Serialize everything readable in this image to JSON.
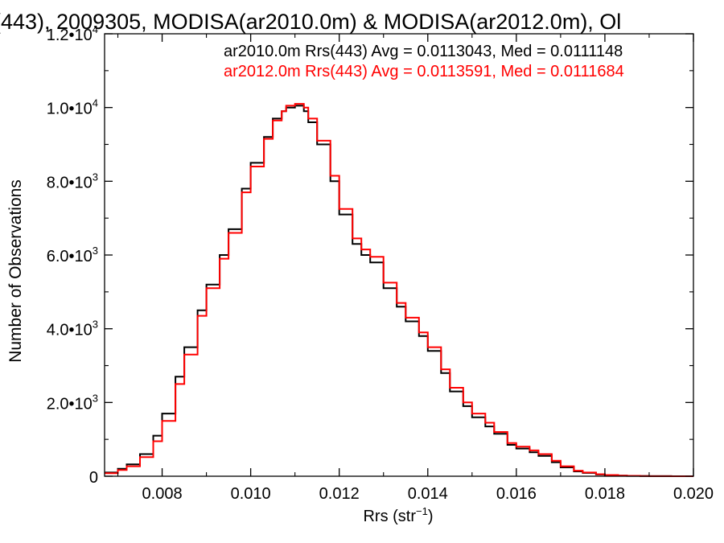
{
  "chart_data": {
    "type": "line",
    "title": "(443), 2009305, MODISA(ar2010.0m) & MODISA(ar2012.0m), Ol",
    "xlabel_main": "Rrs (str",
    "xlabel_sup": "−1",
    "xlabel_close": ")",
    "ylabel": "Number of Observations",
    "xlim": [
      0.0067,
      0.02
    ],
    "ylim": [
      0,
      12000
    ],
    "x_ticks": [
      0.008,
      0.01,
      0.012,
      0.014,
      0.016,
      0.018,
      0.02
    ],
    "x_tick_labels": [
      "0.008",
      "0.010",
      "0.012",
      "0.014",
      "0.016",
      "0.018",
      "0.020"
    ],
    "y_ticks": [
      0,
      2000,
      4000,
      6000,
      8000,
      10000,
      12000
    ],
    "y_tick_labels": [
      {
        "mant": "0",
        "exp": ""
      },
      {
        "mant": "2.0•10",
        "exp": "3"
      },
      {
        "mant": "4.0•10",
        "exp": "3"
      },
      {
        "mant": "6.0•10",
        "exp": "3"
      },
      {
        "mant": "8.0•10",
        "exp": "3"
      },
      {
        "mant": "1.0•10",
        "exp": "4"
      },
      {
        "mant": "1.2•10",
        "exp": "4"
      }
    ],
    "legend": [
      {
        "text": "ar2010.0m Rrs(443) Avg = 0.0113043, Med = 0.0111148",
        "color": "#000000"
      },
      {
        "text": "ar2012.0m Rrs(443) Avg = 0.0113591, Med = 0.0111684",
        "color": "#ff0000"
      }
    ],
    "series": [
      {
        "color": "#000000",
        "x": [
          0.0067,
          0.007,
          0.0072,
          0.0075,
          0.0078,
          0.008,
          0.0083,
          0.0085,
          0.0088,
          0.009,
          0.0093,
          0.0095,
          0.0098,
          0.01,
          0.0103,
          0.0105,
          0.0107,
          0.0108,
          0.011,
          0.0111,
          0.0112,
          0.0113,
          0.0115,
          0.0118,
          0.012,
          0.0123,
          0.0125,
          0.0127,
          0.013,
          0.0133,
          0.0135,
          0.0138,
          0.014,
          0.0143,
          0.0145,
          0.0148,
          0.015,
          0.0153,
          0.0155,
          0.0158,
          0.016,
          0.0163,
          0.0165,
          0.0168,
          0.017,
          0.0173,
          0.0175,
          0.0178,
          0.018,
          0.0183,
          0.0185,
          0.0188,
          0.019,
          0.0195,
          0.02
        ],
        "y": [
          100,
          200,
          320,
          600,
          1100,
          1700,
          2700,
          3500,
          4500,
          5200,
          6000,
          6700,
          7800,
          8500,
          9200,
          9700,
          9900,
          10000,
          10050,
          10050,
          9900,
          9600,
          9000,
          8000,
          7100,
          6300,
          6000,
          5800,
          5100,
          4600,
          4200,
          3800,
          3400,
          2800,
          2300,
          1900,
          1600,
          1350,
          1150,
          850,
          750,
          650,
          550,
          380,
          240,
          130,
          90,
          45,
          28,
          15,
          8,
          4,
          2,
          1,
          0
        ]
      },
      {
        "color": "#ff0000",
        "x": [
          0.0067,
          0.007,
          0.0072,
          0.0075,
          0.0078,
          0.008,
          0.0083,
          0.0085,
          0.0088,
          0.009,
          0.0093,
          0.0095,
          0.0098,
          0.01,
          0.0103,
          0.0105,
          0.0107,
          0.0108,
          0.011,
          0.0111,
          0.0112,
          0.0113,
          0.0115,
          0.0118,
          0.012,
          0.0123,
          0.0125,
          0.0127,
          0.013,
          0.0133,
          0.0135,
          0.0138,
          0.014,
          0.0143,
          0.0145,
          0.0148,
          0.015,
          0.0153,
          0.0155,
          0.0158,
          0.016,
          0.0163,
          0.0165,
          0.0168,
          0.017,
          0.0173,
          0.0175,
          0.0178,
          0.018,
          0.0183,
          0.0185,
          0.0188,
          0.019,
          0.0195,
          0.02
        ],
        "y": [
          80,
          170,
          270,
          520,
          950,
          1500,
          2500,
          3300,
          4350,
          5100,
          5900,
          6600,
          7700,
          8400,
          9150,
          9650,
          9900,
          10050,
          10100,
          10100,
          10000,
          9700,
          9100,
          8150,
          7250,
          6450,
          6150,
          5950,
          5250,
          4700,
          4300,
          3900,
          3500,
          2900,
          2400,
          2000,
          1700,
          1450,
          1200,
          900,
          800,
          700,
          600,
          420,
          270,
          150,
          100,
          55,
          33,
          18,
          10,
          5,
          3,
          1,
          0
        ]
      }
    ]
  }
}
